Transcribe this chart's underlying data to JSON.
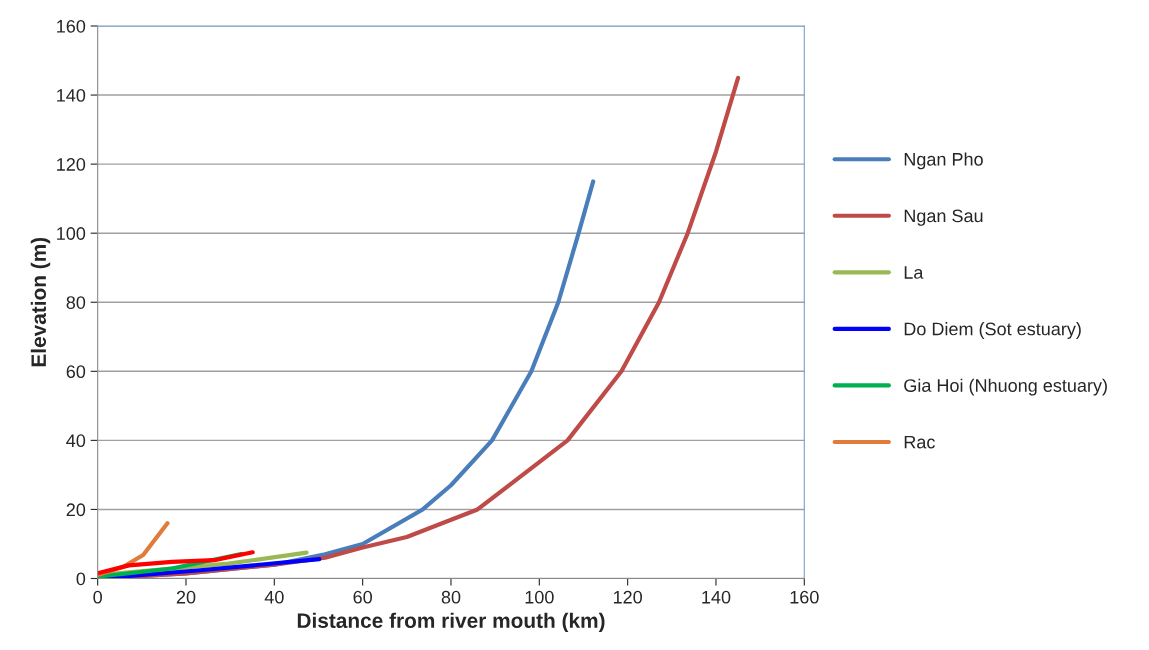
{
  "chart_data": {
    "type": "line",
    "xlabel": "Distance from river mouth (km)",
    "ylabel": "Elevation (m)",
    "xlim": [
      0,
      160
    ],
    "xticks": [
      0,
      20,
      40,
      60,
      80,
      100,
      120,
      140,
      160
    ],
    "ylim": [
      0,
      160
    ],
    "yticks": [
      0,
      20,
      40,
      60,
      80,
      100,
      120,
      140,
      160
    ],
    "grid": "y",
    "legend": "right",
    "marker": "none",
    "line_style": "solid",
    "series": [
      {
        "name": "Ngan Pho",
        "color": "#4a7ebb",
        "x": [
          0,
          20,
          40,
          51.5,
          60,
          73.6,
          80,
          89.3,
          98.2,
          104.3,
          108.9,
          112.2
        ],
        "values": [
          0,
          1.5,
          4,
          7,
          10,
          20,
          27,
          40,
          60,
          80,
          100,
          115
        ]
      },
      {
        "name": "Ngan Sau",
        "color": "#be4b48",
        "x": [
          0,
          20,
          40,
          51.5,
          60,
          70,
          86,
          106.4,
          118.6,
          127.1,
          133.6,
          140,
          145
        ],
        "values": [
          0,
          1.5,
          4,
          6,
          9,
          12,
          20,
          40,
          60,
          80,
          100,
          123.6,
          145
        ]
      },
      {
        "name": "La",
        "color": "#98b954",
        "x": [
          0,
          29.6,
          47.3
        ],
        "values": [
          1,
          4.3,
          7.5
        ]
      },
      {
        "name": "Do Diem (Sot estuary)",
        "color": "#0000ff",
        "x": [
          0,
          23.2,
          50.2
        ],
        "values": [
          0,
          2.4,
          5.6
        ]
      },
      {
        "name": "Gia Hoi (Nhuong estuary)",
        "color": "#00b050",
        "x": [
          0,
          16.8,
          32.5
        ],
        "values": [
          0.5,
          2.9,
          7.1
        ]
      },
      {
        "name": "Rac",
        "color": "#e07b39",
        "x": [
          0,
          5.8,
          10.3,
          15.8
        ],
        "values": [
          1,
          3.4,
          6.8,
          16
        ]
      },
      {
        "color": "#ff0000",
        "x": [
          0,
          7.1,
          16.8,
          26.4,
          35.1
        ],
        "values": [
          1.5,
          3.8,
          4.8,
          5.3,
          7.6
        ]
      }
    ]
  }
}
